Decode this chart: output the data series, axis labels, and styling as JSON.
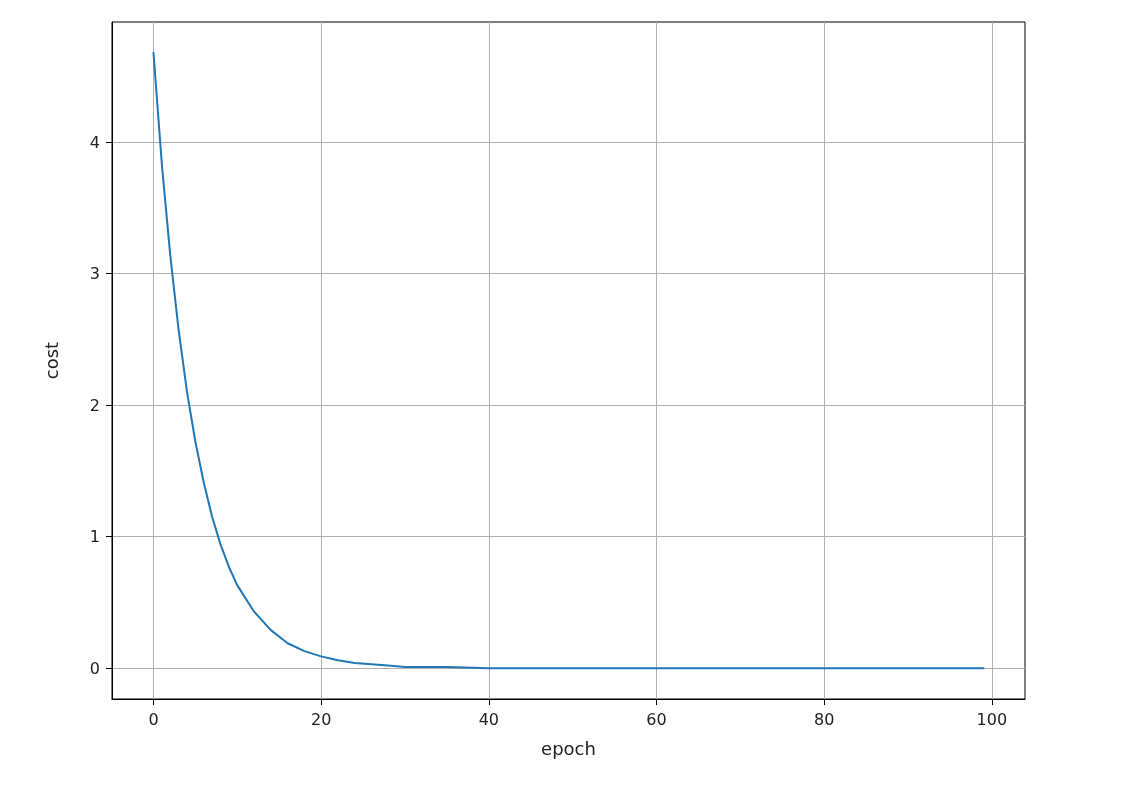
{
  "chart_data": {
    "type": "line",
    "xlabel": "epoch",
    "ylabel": "cost",
    "x": [
      0,
      1,
      2,
      3,
      4,
      5,
      6,
      7,
      8,
      9,
      10,
      12,
      14,
      16,
      18,
      20,
      22,
      24,
      26,
      28,
      30,
      35,
      40,
      50,
      60,
      70,
      80,
      90,
      99
    ],
    "series": [
      {
        "color": "#1f77b4",
        "values": [
          4.68,
          3.83,
          3.14,
          2.57,
          2.1,
          1.72,
          1.41,
          1.15,
          0.94,
          0.77,
          0.63,
          0.43,
          0.29,
          0.19,
          0.13,
          0.09,
          0.06,
          0.04,
          0.03,
          0.02,
          0.01,
          0.01,
          0,
          0,
          0,
          0,
          0,
          0,
          0
        ]
      }
    ],
    "xlim": [
      -4.95,
      103.95
    ],
    "xticks": [
      0,
      20,
      40,
      60,
      80,
      100
    ],
    "ylim": [
      -0.234,
      4.914
    ],
    "yticks": [
      0,
      1,
      2,
      3,
      4
    ],
    "grid": true,
    "marker": "none",
    "line_style": "solid"
  }
}
